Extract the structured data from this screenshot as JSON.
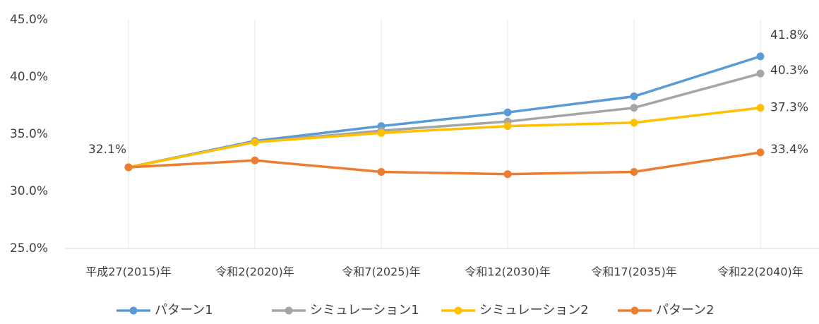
{
  "chart_data": {
    "type": "line",
    "categories": [
      "平成27(2015)年",
      "令和2(2020)年",
      "令和7(2025)年",
      "令和12(2030)年",
      "令和17(2035)年",
      "令和22(2040)年"
    ],
    "series": [
      {
        "name": "パターン1",
        "color": "#5b9bd5",
        "values": [
          32.1,
          34.4,
          35.7,
          36.9,
          38.3,
          41.8
        ],
        "value_labels": [
          "32.1%",
          null,
          null,
          null,
          null,
          "41.8%"
        ]
      },
      {
        "name": "シミュレーション1",
        "color": "#a5a5a5",
        "values": [
          32.1,
          34.3,
          35.3,
          36.1,
          37.3,
          40.3
        ],
        "value_labels": [
          null,
          null,
          null,
          null,
          null,
          "40.3%"
        ]
      },
      {
        "name": "シミュレーション2",
        "color": "#ffc000",
        "values": [
          32.1,
          34.3,
          35.1,
          35.7,
          36.0,
          37.3
        ],
        "value_labels": [
          null,
          null,
          null,
          null,
          null,
          "37.3%"
        ]
      },
      {
        "name": "パターン2",
        "color": "#ed7d31",
        "values": [
          32.1,
          32.7,
          31.7,
          31.5,
          31.7,
          33.4
        ],
        "value_labels": [
          null,
          null,
          null,
          null,
          null,
          "33.4%"
        ]
      }
    ],
    "ylim": [
      25,
      45
    ],
    "yticks": [
      {
        "value": 25,
        "label": "25.0%"
      },
      {
        "value": 30,
        "label": "30.0%"
      },
      {
        "value": 35,
        "label": "35.0%"
      },
      {
        "value": 40,
        "label": "40.0%"
      },
      {
        "value": 45,
        "label": "45.0%"
      }
    ],
    "grid": true,
    "legend": "bottom"
  }
}
